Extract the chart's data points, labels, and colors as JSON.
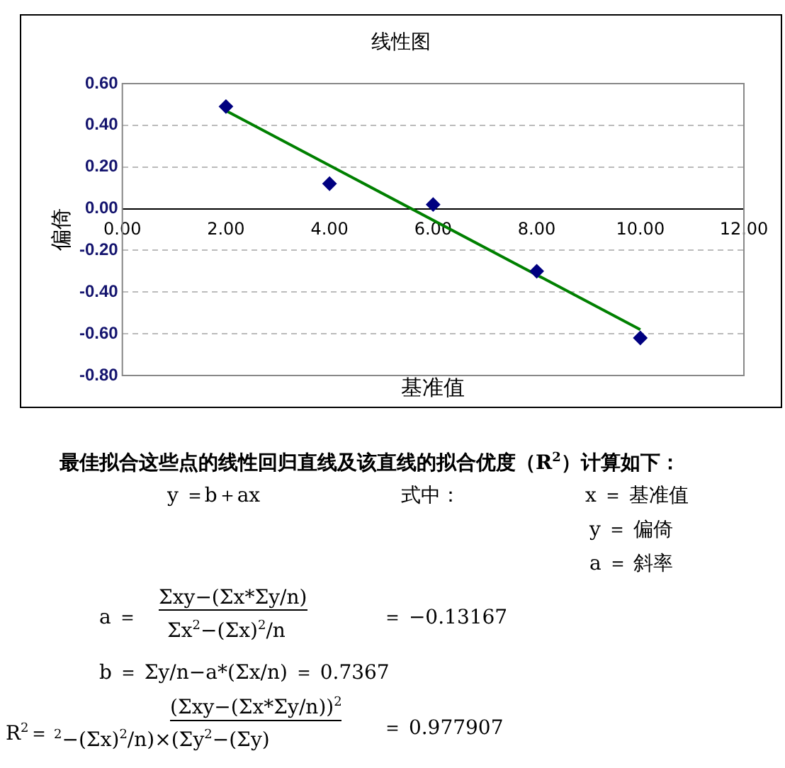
{
  "chart_data": {
    "type": "scatter",
    "title": "线性图",
    "xlabel": "基准值",
    "ylabel": "偏倚",
    "xlim": [
      0,
      12
    ],
    "xticks": [
      {
        "value": 0,
        "label": "0.00"
      },
      {
        "value": 2,
        "label": "2.00"
      },
      {
        "value": 4,
        "label": "4.00"
      },
      {
        "value": 6,
        "label": "6.00"
      },
      {
        "value": 8,
        "label": "8.00"
      },
      {
        "value": 10,
        "label": "10.00"
      },
      {
        "value": 12,
        "label": "12.00"
      }
    ],
    "ylim": [
      -0.8,
      0.6
    ],
    "yticks": [
      {
        "value": -0.8,
        "label": "-0.80"
      },
      {
        "value": -0.6,
        "label": "-0.60"
      },
      {
        "value": -0.4,
        "label": "-0.40"
      },
      {
        "value": -0.2,
        "label": "-0.20"
      },
      {
        "value": 0,
        "label": "0.00"
      },
      {
        "value": 0.2,
        "label": "0.20"
      },
      {
        "value": 0.4,
        "label": "0.40"
      },
      {
        "value": 0.6,
        "label": "0.60"
      }
    ],
    "grid": "y",
    "legend": false,
    "series": [
      {
        "type": "scatter",
        "color": "#000080",
        "marker": "diamond",
        "x": [
          2,
          4,
          6,
          8,
          10
        ],
        "values": [
          0.49,
          0.12,
          0.02,
          -0.3,
          -0.62
        ]
      },
      {
        "type": "line",
        "color": "#008000",
        "marker": "none",
        "line_style": "solid",
        "x": [
          2,
          10
        ],
        "values": [
          0.47,
          -0.58
        ]
      }
    ],
    "annotations": [
      "最佳拟合这些点的线性回归直线及该直线的拟合优度（R$^{2}$）计算如下：",
      "y ＝b＋ax",
      "式中：",
      "x ＝ 基准值",
      "y ＝ 偏倚",
      "a ＝ 斜率",
      "a ＝",
      "Σxy−(Σx*Σy/n)",
      "Σx$^{2}$−(Σx)$^{2}$/n",
      "＝ −0.13167",
      "b ＝ Σy/n−a*(Σx/n) ＝ 0.7367",
      "R$^{2}$＝",
      "(Σxy−(Σx*Σy/n))$^{2}$",
      "$^{2}$−(Σx)$^{2}$/n)×(Σy$^{2}$−(Σy)",
      "＝ 0.977907"
    ]
  }
}
